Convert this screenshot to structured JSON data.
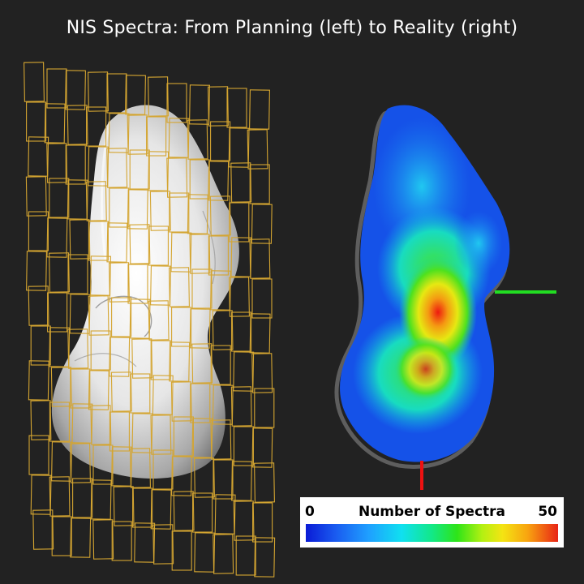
{
  "title": "NIS Spectra: From Planning (left) to Reality (right)",
  "legend": {
    "min": "0",
    "label": "Number of Spectra",
    "max": "50"
  },
  "colors": {
    "background": "#222222",
    "grid": "#d4a531",
    "axis_green": "#22dd22",
    "axis_red": "#ee1111"
  }
}
